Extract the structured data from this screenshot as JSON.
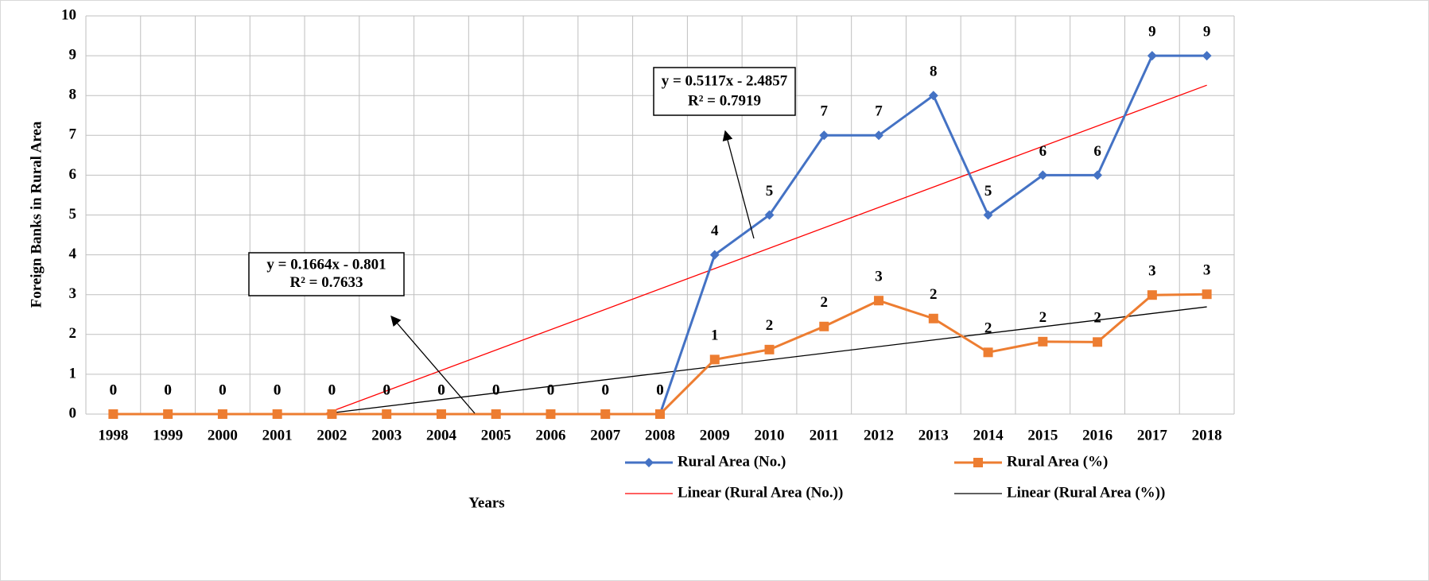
{
  "chart_data": {
    "type": "line",
    "y_label": "Foreign Banks in Rural Area",
    "x_label": "Years",
    "categories": [
      "1998",
      "1999",
      "2000",
      "2001",
      "2002",
      "2003",
      "2004",
      "2005",
      "2006",
      "2007",
      "2008",
      "2009",
      "2010",
      "2011",
      "2012",
      "2013",
      "2014",
      "2015",
      "2016",
      "2017",
      "2018"
    ],
    "ylim": [
      0,
      10
    ],
    "yticks": [
      0,
      1,
      2,
      3,
      4,
      5,
      6,
      7,
      8,
      9,
      10
    ],
    "grid": true,
    "legend": "bottom",
    "series": [
      {
        "name": "Rural Area (No.)",
        "color": "#4472c4",
        "marker": "diamond",
        "values": [
          0,
          0,
          0,
          0,
          0,
          0,
          0,
          0,
          0,
          0,
          0,
          4,
          5,
          7,
          7,
          8,
          5,
          6,
          6,
          9,
          9
        ]
      },
      {
        "name": "Rural Area (%)",
        "color": "#ed7d31",
        "marker": "square",
        "values": [
          0,
          0,
          0,
          0,
          0,
          0,
          0,
          0,
          0,
          0,
          0,
          1.37,
          1.62,
          2.2,
          2.85,
          2.4,
          1.55,
          1.82,
          1.81,
          2.99,
          3.01
        ],
        "value_labels": [
          "0",
          "0",
          "0",
          "0",
          "0",
          "0",
          "0",
          "0",
          "0",
          "0",
          "0",
          "1",
          "2",
          "2",
          "3",
          "2",
          "2",
          "2",
          "2",
          "3",
          "3"
        ]
      }
    ],
    "trendlines": [
      {
        "name": "Linear (Rural Area (No.))",
        "color": "#ff0000",
        "slope": 0.5117,
        "intercept": -2.4857,
        "equation": "y = 0.5117x - 2.4857",
        "r2": "R² = 0.7919"
      },
      {
        "name": "Linear (Rural Area (%))",
        "color": "#000000",
        "slope": 0.1664,
        "intercept": -0.801,
        "equation": "y = 0.1664x - 0.801",
        "r2": "R² = 0.7633"
      }
    ]
  }
}
